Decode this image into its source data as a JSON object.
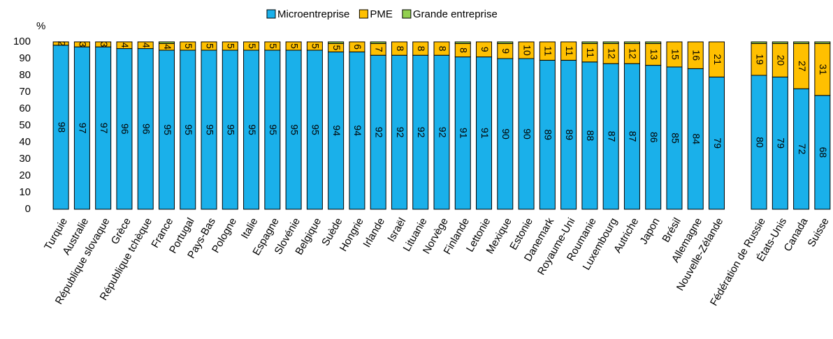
{
  "chart_data": {
    "type": "stacked_bar",
    "y_axis_label": "%",
    "categories": [
      "Turquie",
      "Australie",
      "République slovaque",
      "Grèce",
      "République tchèque",
      "France",
      "Portugal",
      "Pays-Bas",
      "Pologne",
      "Italie",
      "Espagne",
      "Slovénie",
      "Belgique",
      "Suède",
      "Hongrie",
      "Irlande",
      "Israël",
      "Lituanie",
      "Norvège",
      "Finlande",
      "Lettonie",
      "Mexique",
      "Estonie",
      "Danemark",
      "Royaume-Uni",
      "Roumanie",
      "Luxembourg",
      "Autriche",
      "Japon",
      "Brésil",
      "Allemagne",
      "Nouvelle-Zélande",
      null,
      "Fédération de Russie",
      "États-Unis",
      "Canada",
      "Suisse"
    ],
    "series": [
      {
        "name": "Microentreprise",
        "color": "#1ab0ea",
        "values": [
          98,
          97,
          97,
          96,
          96,
          95,
          95,
          95,
          95,
          95,
          95,
          95,
          95,
          94,
          94,
          92,
          92,
          92,
          92,
          91,
          91,
          90,
          90,
          89,
          89,
          88,
          87,
          87,
          86,
          85,
          84,
          79,
          null,
          80,
          79,
          72,
          68
        ]
      },
      {
        "name": "PME",
        "color": "#ffc000",
        "values": [
          2,
          3,
          3,
          4,
          4,
          4,
          5,
          5,
          5,
          5,
          5,
          5,
          5,
          5,
          6,
          7,
          8,
          8,
          8,
          8,
          9,
          9,
          10,
          11,
          11,
          11,
          12,
          12,
          13,
          15,
          16,
          21,
          null,
          19,
          20,
          27,
          31
        ]
      },
      {
        "name": "Grande entreprise",
        "color": "#92d050",
        "values": [
          0,
          0,
          0,
          0,
          0,
          1,
          0,
          0,
          0,
          0,
          0,
          0,
          0,
          1,
          0,
          1,
          0,
          0,
          0,
          1,
          0,
          1,
          0,
          0,
          0,
          1,
          1,
          1,
          1,
          0,
          0,
          0,
          null,
          1,
          1,
          1,
          1
        ]
      }
    ],
    "ylim": [
      0,
      100
    ],
    "yticks": [
      0,
      10,
      20,
      30,
      40,
      50,
      60,
      70,
      80,
      90,
      100
    ],
    "grid": false,
    "legend": "top"
  }
}
